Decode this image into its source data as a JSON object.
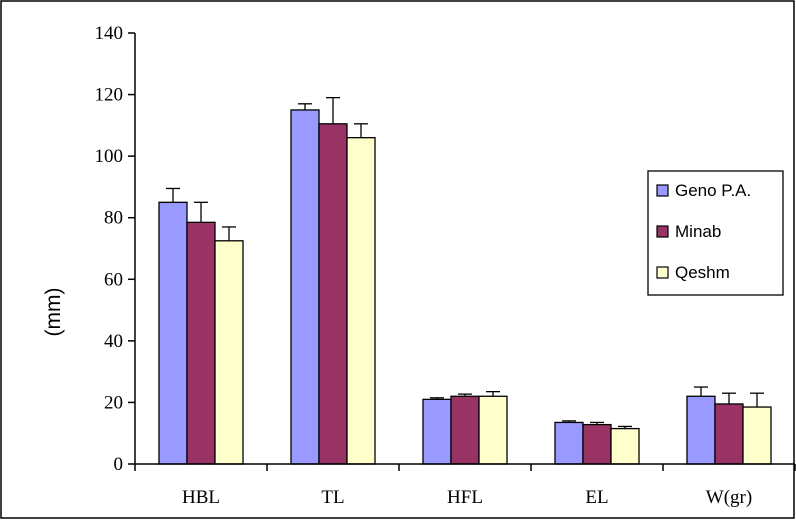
{
  "chart_data": {
    "type": "bar",
    "title": "",
    "xlabel": "",
    "ylabel": "(mm)",
    "ylim": [
      0,
      140
    ],
    "yticks": [
      0,
      20,
      40,
      60,
      80,
      100,
      120,
      140
    ],
    "categories": [
      "HBL",
      "TL",
      "HFL",
      "EL",
      "W(gr)"
    ],
    "grid": false,
    "legend_position": "right",
    "series": [
      {
        "name": "Geno P.A.",
        "color": "#9999ff",
        "values": [
          85,
          115,
          21,
          13.5,
          22
        ],
        "errors": [
          4.5,
          2,
          0.5,
          0.5,
          3
        ]
      },
      {
        "name": "Minab",
        "color": "#993366",
        "values": [
          78.5,
          110.5,
          22,
          12.8,
          19.5
        ],
        "errors": [
          6.5,
          8.5,
          0.7,
          0.7,
          3.5
        ]
      },
      {
        "name": "Qeshm",
        "color": "#ffffcc",
        "values": [
          72.5,
          106,
          22,
          11.5,
          18.5
        ],
        "errors": [
          4.5,
          4.5,
          1.5,
          0.7,
          4.5
        ]
      }
    ]
  }
}
